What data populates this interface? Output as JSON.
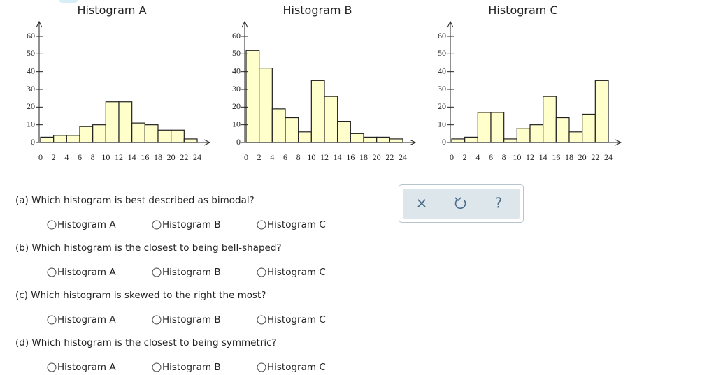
{
  "chart_data": [
    {
      "type": "histogram",
      "title": "Histogram A",
      "bins": [
        0,
        2,
        4,
        6,
        8,
        10,
        12,
        14,
        16,
        18,
        20,
        22,
        24
      ],
      "values": [
        3,
        4,
        4,
        9,
        10,
        23,
        23,
        11,
        10,
        7,
        7,
        2
      ],
      "color": "#ffffcc",
      "xlim": [
        0,
        24
      ],
      "xticks": [
        0,
        2,
        4,
        6,
        8,
        10,
        12,
        14,
        16,
        18,
        20,
        22,
        24
      ],
      "ylim": [
        0,
        60
      ],
      "yticks": [
        0,
        10,
        20,
        30,
        40,
        50,
        60
      ]
    },
    {
      "type": "histogram",
      "title": "Histogram B",
      "bins": [
        0,
        2,
        4,
        6,
        8,
        10,
        12,
        14,
        16,
        18,
        20,
        22,
        24
      ],
      "values": [
        52,
        42,
        19,
        14,
        6,
        35,
        26,
        12,
        5,
        3,
        3,
        2
      ],
      "color": "#ffffcc",
      "xlim": [
        0,
        24
      ],
      "xticks": [
        0,
        2,
        4,
        6,
        8,
        10,
        12,
        14,
        16,
        18,
        20,
        22,
        24
      ],
      "ylim": [
        0,
        60
      ],
      "yticks": [
        0,
        10,
        20,
        30,
        40,
        50,
        60
      ]
    },
    {
      "type": "histogram",
      "title": "Histogram C",
      "bins": [
        0,
        2,
        4,
        6,
        8,
        10,
        12,
        14,
        16,
        18,
        20,
        22,
        24
      ],
      "values": [
        2,
        3,
        17,
        17,
        2,
        8,
        10,
        26,
        14,
        6,
        16,
        35
      ],
      "color": "#ffffcc",
      "xlim": [
        0,
        24
      ],
      "xticks": [
        0,
        2,
        4,
        6,
        8,
        10,
        12,
        14,
        16,
        18,
        20,
        22,
        24
      ],
      "ylim": [
        0,
        60
      ],
      "yticks": [
        0,
        10,
        20,
        30,
        40,
        50,
        60
      ]
    }
  ],
  "questions": [
    {
      "prompt": "(a) Which histogram is best described as bimodal?",
      "options": [
        "Histogram A",
        "Histogram B",
        "Histogram C"
      ]
    },
    {
      "prompt": "(b) Which histogram is the closest to being bell-shaped?",
      "options": [
        "Histogram A",
        "Histogram B",
        "Histogram C"
      ]
    },
    {
      "prompt": "(c) Which histogram is skewed to the right the most?",
      "options": [
        "Histogram A",
        "Histogram B",
        "Histogram C"
      ]
    },
    {
      "prompt": "(d) Which histogram is the closest to being symmetric?",
      "options": [
        "Histogram A",
        "Histogram B",
        "Histogram C"
      ]
    }
  ],
  "buttons": {
    "clear": "×",
    "help": "?"
  }
}
